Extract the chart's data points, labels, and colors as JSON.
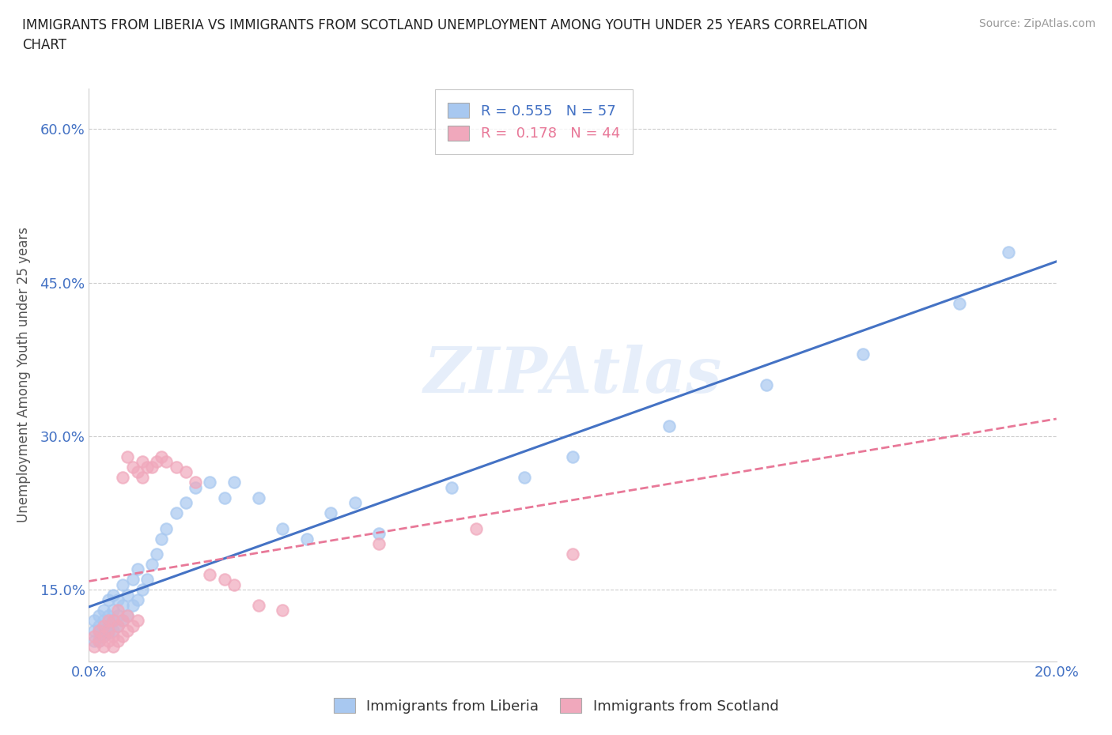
{
  "title_line1": "IMMIGRANTS FROM LIBERIA VS IMMIGRANTS FROM SCOTLAND UNEMPLOYMENT AMONG YOUTH UNDER 25 YEARS CORRELATION",
  "title_line2": "CHART",
  "source": "Source: ZipAtlas.com",
  "ylabel": "Unemployment Among Youth under 25 years",
  "xlim": [
    0.0,
    0.2
  ],
  "ylim": [
    0.08,
    0.64
  ],
  "xticks": [
    0.0,
    0.05,
    0.1,
    0.15,
    0.2
  ],
  "xticklabels": [
    "0.0%",
    "",
    "",
    "",
    "20.0%"
  ],
  "yticks": [
    0.15,
    0.3,
    0.45,
    0.6
  ],
  "yticklabels": [
    "15.0%",
    "30.0%",
    "45.0%",
    "60.0%"
  ],
  "liberia_color": "#a8c8f0",
  "scotland_color": "#f0a8bc",
  "liberia_line_color": "#4472c4",
  "scotland_line_color": "#e87898",
  "R_liberia": 0.555,
  "N_liberia": 57,
  "R_scotland": 0.178,
  "N_scotland": 44,
  "liberia_x": [
    0.001,
    0.001,
    0.001,
    0.002,
    0.002,
    0.002,
    0.002,
    0.003,
    0.003,
    0.003,
    0.003,
    0.004,
    0.004,
    0.004,
    0.004,
    0.005,
    0.005,
    0.005,
    0.005,
    0.006,
    0.006,
    0.006,
    0.007,
    0.007,
    0.007,
    0.008,
    0.008,
    0.009,
    0.009,
    0.01,
    0.01,
    0.011,
    0.012,
    0.013,
    0.014,
    0.015,
    0.016,
    0.018,
    0.02,
    0.022,
    0.025,
    0.028,
    0.03,
    0.035,
    0.04,
    0.045,
    0.05,
    0.055,
    0.06,
    0.075,
    0.09,
    0.1,
    0.12,
    0.14,
    0.16,
    0.18,
    0.19
  ],
  "liberia_y": [
    0.1,
    0.11,
    0.12,
    0.1,
    0.11,
    0.115,
    0.125,
    0.105,
    0.11,
    0.12,
    0.13,
    0.108,
    0.115,
    0.125,
    0.14,
    0.11,
    0.12,
    0.13,
    0.145,
    0.115,
    0.125,
    0.14,
    0.12,
    0.135,
    0.155,
    0.125,
    0.145,
    0.135,
    0.16,
    0.14,
    0.17,
    0.15,
    0.16,
    0.175,
    0.185,
    0.2,
    0.21,
    0.225,
    0.235,
    0.25,
    0.255,
    0.24,
    0.255,
    0.24,
    0.21,
    0.2,
    0.225,
    0.235,
    0.205,
    0.25,
    0.26,
    0.28,
    0.31,
    0.35,
    0.38,
    0.43,
    0.48
  ],
  "scotland_x": [
    0.001,
    0.001,
    0.002,
    0.002,
    0.003,
    0.003,
    0.003,
    0.004,
    0.004,
    0.004,
    0.005,
    0.005,
    0.005,
    0.006,
    0.006,
    0.006,
    0.007,
    0.007,
    0.007,
    0.008,
    0.008,
    0.008,
    0.009,
    0.009,
    0.01,
    0.01,
    0.011,
    0.011,
    0.012,
    0.013,
    0.014,
    0.015,
    0.016,
    0.018,
    0.02,
    0.022,
    0.025,
    0.028,
    0.03,
    0.035,
    0.04,
    0.06,
    0.08,
    0.1
  ],
  "scotland_y": [
    0.095,
    0.105,
    0.1,
    0.11,
    0.095,
    0.105,
    0.115,
    0.1,
    0.11,
    0.12,
    0.095,
    0.105,
    0.12,
    0.1,
    0.115,
    0.13,
    0.105,
    0.12,
    0.26,
    0.11,
    0.125,
    0.28,
    0.115,
    0.27,
    0.12,
    0.265,
    0.26,
    0.275,
    0.27,
    0.27,
    0.275,
    0.28,
    0.275,
    0.27,
    0.265,
    0.255,
    0.165,
    0.16,
    0.155,
    0.135,
    0.13,
    0.195,
    0.21,
    0.185
  ]
}
